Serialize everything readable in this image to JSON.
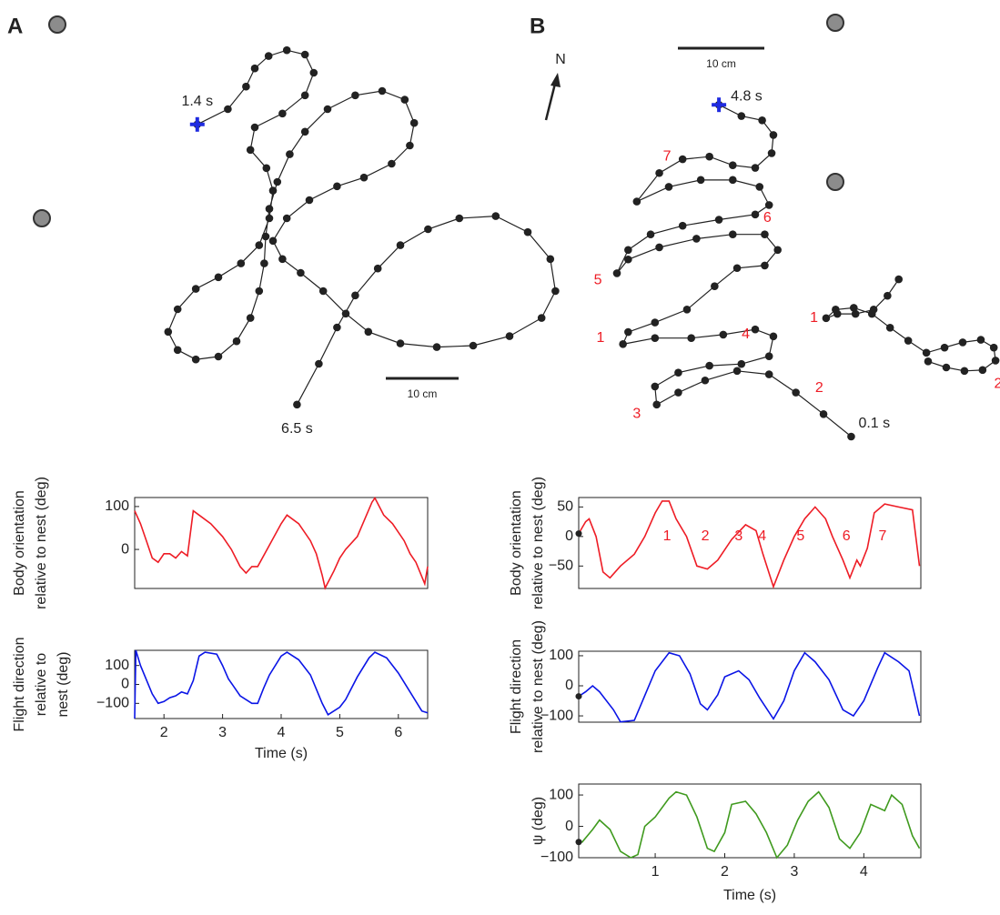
{
  "chart_data": [
    {
      "type": "trajectory",
      "panel_label": "A",
      "color": "#222222",
      "start_label": "1.4 s",
      "end_label": "6.5 s",
      "cross_at": "start",
      "scale_bar": {
        "value": 10,
        "label": "10 cm"
      },
      "x": [
        4.6,
        8.8,
        11.3,
        12.5,
        14.4,
        16.9,
        19.4,
        20.6,
        19.4,
        16.3,
        12.5,
        11.9,
        14.1,
        15,
        14.5,
        13.1,
        10.6,
        7.5,
        4.4,
        1.9,
        0.6,
        1.9,
        4.4,
        7.5,
        10,
        11.9,
        13.1,
        13.8,
        14,
        14.5,
        15.6,
        17.3,
        19.4,
        22.5,
        26.3,
        30,
        33.1,
        34.4,
        33.8,
        31.3,
        27.5,
        23.8,
        20,
        16.9,
        15,
        16.3,
        18.8,
        21.9,
        25,
        28.1,
        32.5,
        37.5,
        42.5,
        47.5,
        51.9,
        53.8,
        53.1,
        50,
        45.6,
        40.6,
        36.3,
        32.5,
        29.4,
        26.3,
        23.8,
        21.3,
        18.3
      ],
      "y": [
        42.9,
        45,
        48.1,
        50.6,
        52.3,
        53.1,
        52.5,
        50,
        46.9,
        44.4,
        42.5,
        39.4,
        36.9,
        33.8,
        30,
        26.3,
        23.8,
        21.9,
        20.3,
        17.5,
        14.4,
        11.9,
        10.6,
        11,
        13.1,
        16.3,
        20,
        23.8,
        27.5,
        31.3,
        35,
        38.8,
        41.9,
        45,
        46.9,
        47.5,
        46.3,
        43.1,
        40,
        37.5,
        35.6,
        34.4,
        32.5,
        30,
        26.9,
        24.4,
        22.5,
        20,
        16.9,
        14.4,
        12.8,
        12.3,
        12.5,
        13.8,
        16.3,
        20,
        24.4,
        28.1,
        30.3,
        30,
        28.5,
        26.3,
        23.1,
        19.4,
        15,
        10,
        4.4
      ]
    },
    {
      "type": "trajectory",
      "panel_label": "B",
      "color": "#222222",
      "start_label": "0.1 s",
      "end_label": "4.8 s",
      "cross_at": "end",
      "north_label": "N",
      "scale_bar": {
        "value": 10,
        "label": "10 cm"
      },
      "x": [
        31.1,
        27.9,
        24.7,
        21.6,
        17.9,
        14.2,
        11.1,
        8.6,
        8.4,
        11.1,
        14.7,
        18.4,
        21.6,
        22.1,
        20,
        16.3,
        12.6,
        8.4,
        4.7,
        5.3,
        8.4,
        12.1,
        15.3,
        17.9,
        21.1,
        22.6,
        21.1,
        17.4,
        13.2,
        8.9,
        5.3,
        4,
        5.3,
        7.9,
        11.6,
        15.8,
        20,
        21.6,
        20.5,
        17.4,
        13.7,
        10,
        6.3,
        8.9,
        11.6,
        14.7,
        17.4,
        20,
        21.9,
        22.1,
        20.8,
        18.4,
        15.8
      ],
      "y": [
        0,
        2.6,
        5.1,
        7.2,
        7.6,
        6.5,
        5.1,
        3.7,
        5.8,
        7.4,
        8.2,
        8.4,
        9.3,
        11.6,
        12.4,
        11.8,
        11.4,
        11.4,
        10.7,
        12.1,
        13.2,
        14.7,
        17.4,
        19.5,
        19.8,
        21.6,
        23.4,
        23.4,
        22.9,
        21.9,
        20.5,
        18.9,
        21.6,
        23.4,
        24.4,
        25.1,
        25.7,
        26.8,
        28.9,
        29.7,
        29.7,
        28.9,
        27.2,
        30.5,
        32.1,
        32.4,
        31.4,
        31.1,
        32.8,
        34.9,
        36.6,
        37.1,
        38.4
      ],
      "annotations": [
        {
          "text": "1",
          "x": 2.1,
          "y": 11.4
        },
        {
          "text": "2",
          "x": 27.4,
          "y": 5.6
        },
        {
          "text": "3",
          "x": 6.3,
          "y": 2.6
        },
        {
          "text": "4",
          "x": 18.9,
          "y": 11.8
        },
        {
          "text": "5",
          "x": 1.8,
          "y": 18.1
        },
        {
          "text": "6",
          "x": 21.4,
          "y": 25.3
        },
        {
          "text": "7",
          "x": 9.8,
          "y": 32.4
        }
      ]
    },
    {
      "type": "trajectory",
      "color": "#222222",
      "x": [
        36.6,
        35.3,
        33.7,
        31.6,
        29.5,
        28.2,
        29.3,
        31.4,
        33.5,
        35.6,
        37.7,
        39.8,
        41.9,
        44,
        46.1,
        47.6,
        47.8,
        46.3,
        44.2,
        42.1,
        40
      ],
      "y": [
        18.2,
        16.3,
        14.7,
        14.2,
        14.2,
        13.7,
        14.7,
        14.9,
        14.2,
        12.6,
        11.1,
        9.7,
        10.3,
        10.9,
        11.2,
        10.3,
        8.8,
        7.7,
        7.6,
        8,
        8.7
      ],
      "annotations": [
        {
          "text": "1",
          "x": 26.8,
          "y": 13.7
        },
        {
          "text": "2",
          "x": 48.1,
          "y": 6.1
        }
      ]
    },
    {
      "type": "line",
      "ylabel": [
        "Body orientation",
        "relative to nest (deg)"
      ],
      "color": "#ee1c25",
      "xlim": [
        1.5,
        6.5
      ],
      "ylim": [
        -91,
        121
      ],
      "yticks": [
        0,
        100
      ],
      "x": [
        1.5,
        1.6,
        1.7,
        1.8,
        1.9,
        2.0,
        2.1,
        2.2,
        2.3,
        2.4,
        2.5,
        2.6,
        2.8,
        3.0,
        3.15,
        3.3,
        3.4,
        3.5,
        3.6,
        3.8,
        4.0,
        4.1,
        4.3,
        4.5,
        4.6,
        4.7,
        4.75,
        4.9,
        5.0,
        5.1,
        5.3,
        5.55,
        5.6,
        5.75,
        5.9,
        6.1,
        6.2,
        6.3,
        6.45,
        6.5
      ],
      "values": [
        90,
        60,
        20,
        -20,
        -30,
        -10,
        -10,
        -20,
        -5,
        -15,
        90,
        80,
        60,
        30,
        0,
        -40,
        -55,
        -40,
        -40,
        10,
        60,
        80,
        60,
        20,
        -10,
        -60,
        -90,
        -50,
        -20,
        0,
        30,
        110,
        120,
        80,
        60,
        20,
        -10,
        -30,
        -80,
        -40
      ]
    },
    {
      "type": "line",
      "ylabel": [
        "Flight direction",
        "relative to",
        "nest (deg)"
      ],
      "xlabel": "Time (s)",
      "color": "#0a14e6",
      "xlim": [
        1.5,
        6.5
      ],
      "ylim": [
        -180,
        180
      ],
      "xticks": [
        2,
        3,
        4,
        5,
        6
      ],
      "yticks": [
        {
          "value": -100,
          "label": "−100"
        },
        0,
        100
      ],
      "x": [
        1.5,
        1.52,
        1.6,
        1.8,
        1.9,
        2.0,
        2.1,
        2.2,
        2.3,
        2.4,
        2.5,
        2.6,
        2.7,
        2.9,
        3.0,
        3.1,
        3.3,
        3.5,
        3.6,
        3.7,
        3.8,
        4.0,
        4.1,
        4.3,
        4.5,
        4.7,
        4.8,
        5.0,
        5.1,
        5.3,
        5.5,
        5.6,
        5.8,
        6.0,
        6.2,
        6.4,
        6.5
      ],
      "values": [
        -180,
        180,
        100,
        -50,
        -100,
        -90,
        -70,
        -60,
        -40,
        -50,
        20,
        150,
        170,
        160,
        100,
        30,
        -60,
        -100,
        -100,
        -20,
        50,
        150,
        170,
        130,
        50,
        -100,
        -160,
        -120,
        -80,
        40,
        140,
        170,
        140,
        60,
        -40,
        -140,
        -150
      ]
    },
    {
      "type": "line",
      "ylabel": [
        "Body orientation",
        "relative to nest (deg)"
      ],
      "color": "#ee1c25",
      "start_marker": true,
      "xlim": [
        -0.1,
        4.82
      ],
      "ylim": [
        -88,
        66
      ],
      "yticks": [
        {
          "value": -50,
          "label": "−50"
        },
        0,
        50
      ],
      "x": [
        -0.1,
        0,
        0.05,
        0.15,
        0.25,
        0.35,
        0.5,
        0.7,
        0.85,
        1.0,
        1.1,
        1.2,
        1.3,
        1.45,
        1.6,
        1.75,
        1.9,
        2.1,
        2.3,
        2.45,
        2.55,
        2.7,
        2.85,
        3.0,
        3.15,
        3.3,
        3.45,
        3.55,
        3.7,
        3.8,
        3.9,
        3.95,
        4.05,
        4.15,
        4.3,
        4.5,
        4.7,
        4.8
      ],
      "values": [
        5,
        25,
        30,
        0,
        -60,
        -70,
        -50,
        -30,
        0,
        40,
        60,
        60,
        30,
        0,
        -50,
        -55,
        -40,
        -5,
        20,
        10,
        -30,
        -85,
        -40,
        0,
        30,
        50,
        30,
        0,
        -40,
        -70,
        -40,
        -50,
        -20,
        40,
        55,
        50,
        45,
        -50
      ],
      "annotations": [
        {
          "text": "1",
          "x": 1.17,
          "y": 0
        },
        {
          "text": "2",
          "x": 1.72,
          "y": 0
        },
        {
          "text": "3",
          "x": 2.2,
          "y": 0
        },
        {
          "text": "4",
          "x": 2.54,
          "y": 0
        },
        {
          "text": "5",
          "x": 3.09,
          "y": 0
        },
        {
          "text": "6",
          "x": 3.75,
          "y": 0
        },
        {
          "text": "7",
          "x": 4.27,
          "y": 0
        }
      ]
    },
    {
      "type": "line",
      "ylabel": [
        "Flight direction",
        "relative to nest (deg)"
      ],
      "color": "#0a14e6",
      "start_marker": true,
      "xlim": [
        -0.1,
        4.82
      ],
      "ylim": [
        -121,
        115
      ],
      "yticks": [
        {
          "value": -100,
          "label": "−100"
        },
        0,
        100
      ],
      "x": [
        -0.1,
        0,
        0.1,
        0.2,
        0.4,
        0.5,
        0.7,
        0.8,
        1.0,
        1.2,
        1.35,
        1.5,
        1.65,
        1.75,
        1.9,
        2.0,
        2.2,
        2.35,
        2.5,
        2.7,
        2.85,
        3.0,
        3.15,
        3.3,
        3.5,
        3.7,
        3.85,
        4.0,
        4.2,
        4.3,
        4.5,
        4.65,
        4.8
      ],
      "values": [
        -35,
        -20,
        0,
        -20,
        -80,
        -120,
        -115,
        -60,
        50,
        110,
        100,
        40,
        -60,
        -80,
        -30,
        30,
        50,
        20,
        -40,
        -110,
        -50,
        50,
        110,
        80,
        20,
        -80,
        -100,
        -50,
        60,
        110,
        80,
        50,
        -100
      ]
    },
    {
      "type": "line",
      "ylabel": [
        "ψ (deg)"
      ],
      "xlabel": "Time (s)",
      "color": "#3f9a1e",
      "start_marker": true,
      "xlim": [
        -0.1,
        4.82
      ],
      "ylim": [
        -100,
        135
      ],
      "xticks": [
        1,
        2,
        3,
        4
      ],
      "yticks": [
        {
          "value": -100,
          "label": "−100"
        },
        0,
        100
      ],
      "x": [
        -0.1,
        -0.05,
        0.1,
        0.2,
        0.35,
        0.5,
        0.65,
        0.75,
        0.85,
        1.0,
        1.2,
        1.3,
        1.45,
        1.6,
        1.75,
        1.85,
        2.0,
        2.1,
        2.3,
        2.45,
        2.6,
        2.75,
        2.9,
        3.05,
        3.2,
        3.35,
        3.5,
        3.65,
        3.8,
        3.95,
        4.1,
        4.3,
        4.4,
        4.55,
        4.7,
        4.8
      ],
      "values": [
        -50,
        -50,
        -10,
        20,
        -10,
        -80,
        -100,
        -90,
        0,
        30,
        90,
        110,
        100,
        30,
        -70,
        -80,
        -20,
        70,
        80,
        40,
        -20,
        -100,
        -60,
        20,
        80,
        110,
        60,
        -40,
        -70,
        -20,
        70,
        50,
        100,
        70,
        -30,
        -70
      ]
    }
  ]
}
